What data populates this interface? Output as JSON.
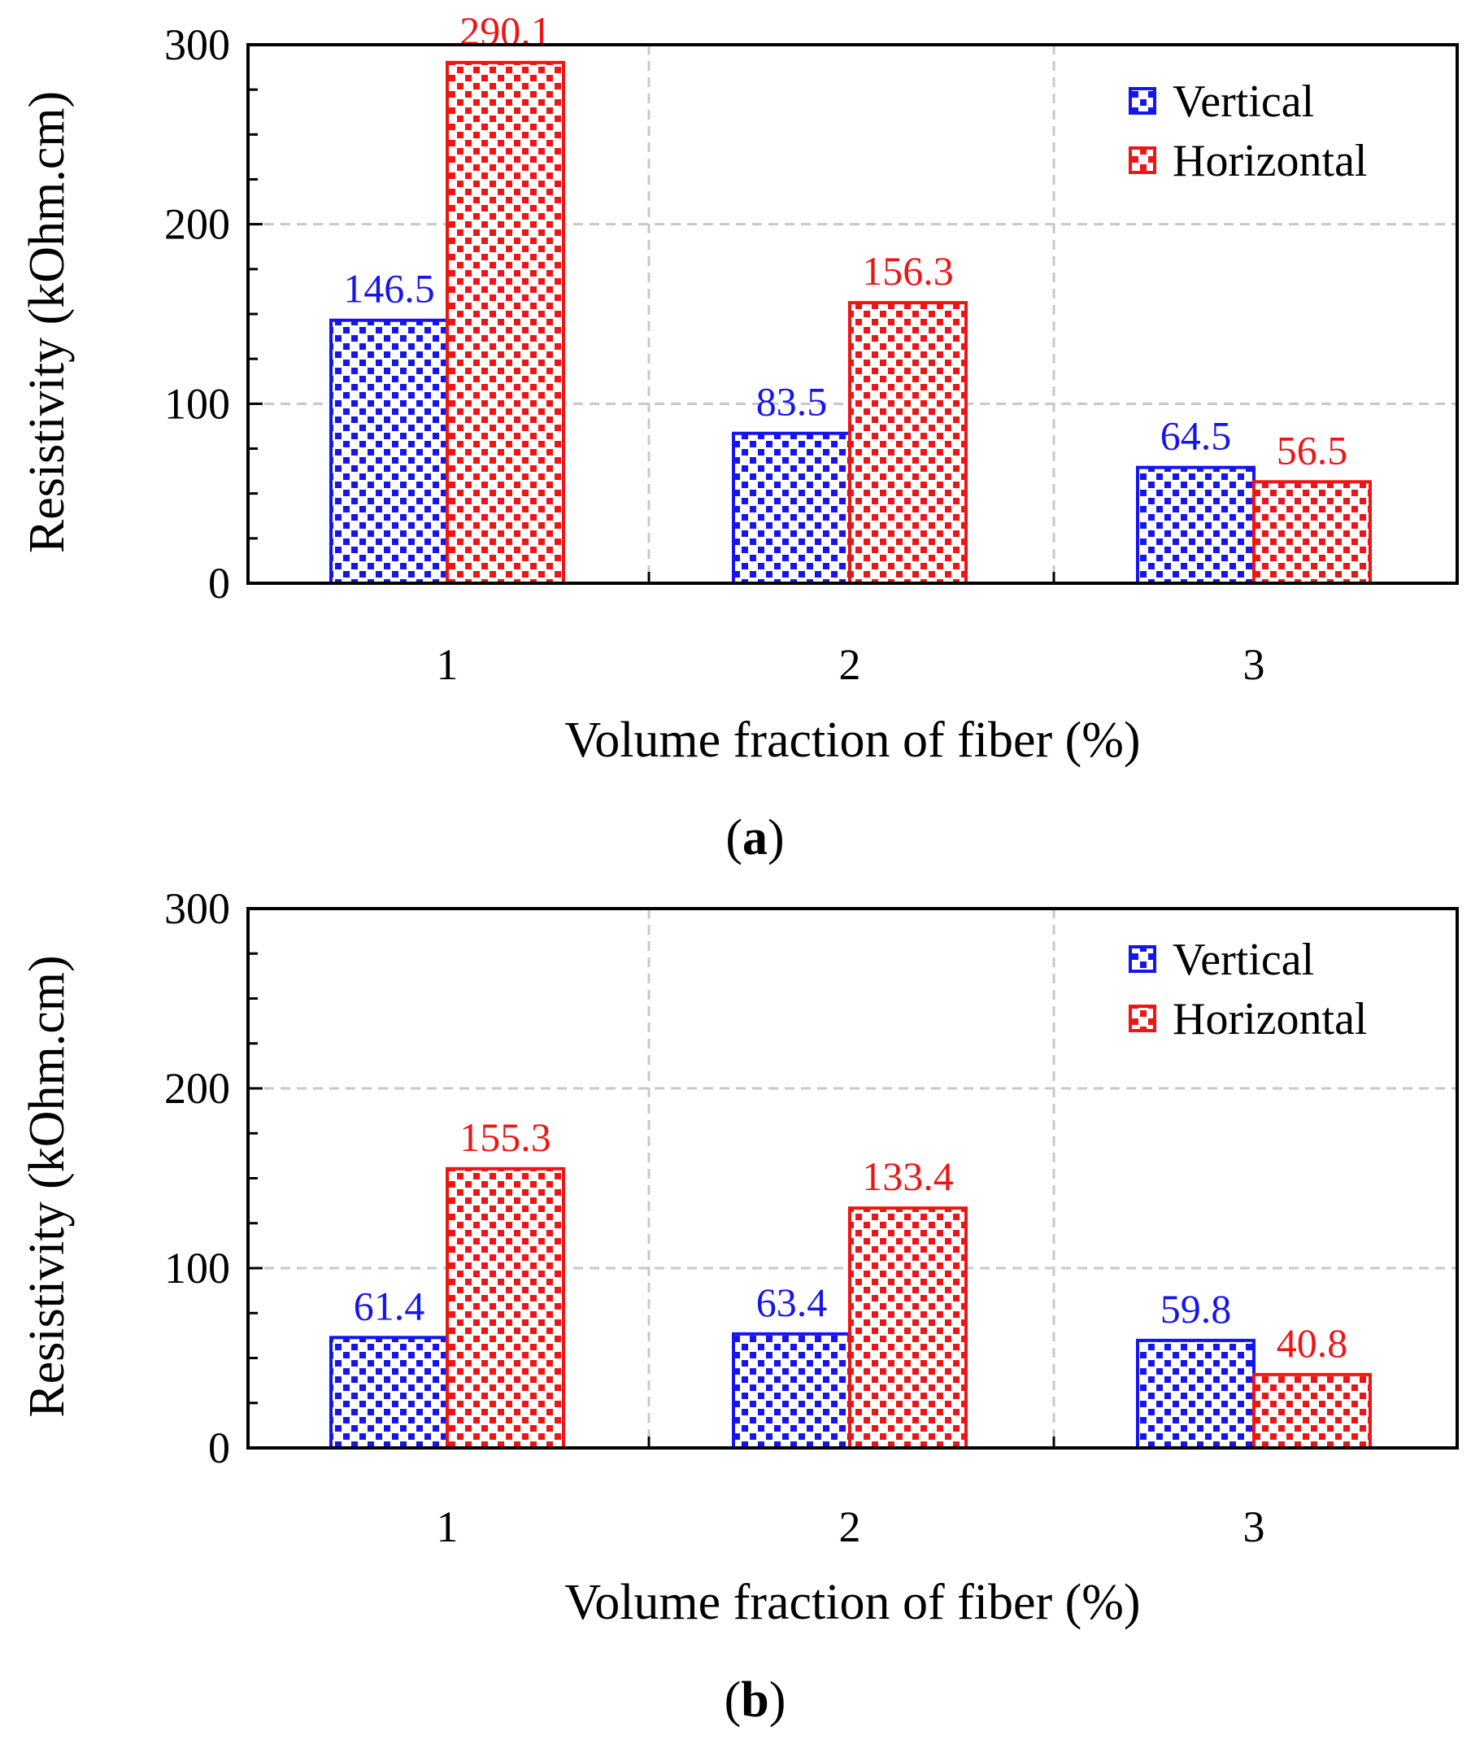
{
  "chart_data": [
    {
      "type": "bar",
      "panel_label": "a",
      "categories": [
        "1",
        "2",
        "3"
      ],
      "series": [
        {
          "name": "Vertical",
          "values": [
            146.5,
            83.5,
            64.5
          ],
          "labels": [
            "146.5",
            "83.5",
            "64.5"
          ],
          "color": "#1515ee"
        },
        {
          "name": "Horizontal",
          "values": [
            290.1,
            156.3,
            56.5
          ],
          "labels": [
            "290.1",
            "156.3",
            "56.5"
          ],
          "color": "#ee1515"
        }
      ],
      "xlabel": "Volume  fraction  of  fiber  (%)",
      "ylabel": "Resistivity  (kOhm.cm)",
      "ylim": [
        0,
        300
      ],
      "yticks": [
        "0",
        "100",
        "200",
        "300"
      ],
      "grid": true,
      "legend_position": "top-right"
    },
    {
      "type": "bar",
      "panel_label": "b",
      "categories": [
        "1",
        "2",
        "3"
      ],
      "series": [
        {
          "name": "Vertical",
          "values": [
            61.4,
            63.4,
            59.8
          ],
          "labels": [
            "61.4",
            "63.4",
            "59.8"
          ],
          "color": "#1515ee"
        },
        {
          "name": "Horizontal",
          "values": [
            155.3,
            133.4,
            40.8
          ],
          "labels": [
            "155.3",
            "133.4",
            "40.8"
          ],
          "color": "#ee1515"
        }
      ],
      "xlabel": "Volume  fraction  of  fiber  (%)",
      "ylabel": "Resistivity  (kOhm.cm)",
      "ylim": [
        0,
        300
      ],
      "yticks": [
        "0",
        "100",
        "200",
        "300"
      ],
      "grid": true,
      "legend_position": "top-right"
    }
  ]
}
